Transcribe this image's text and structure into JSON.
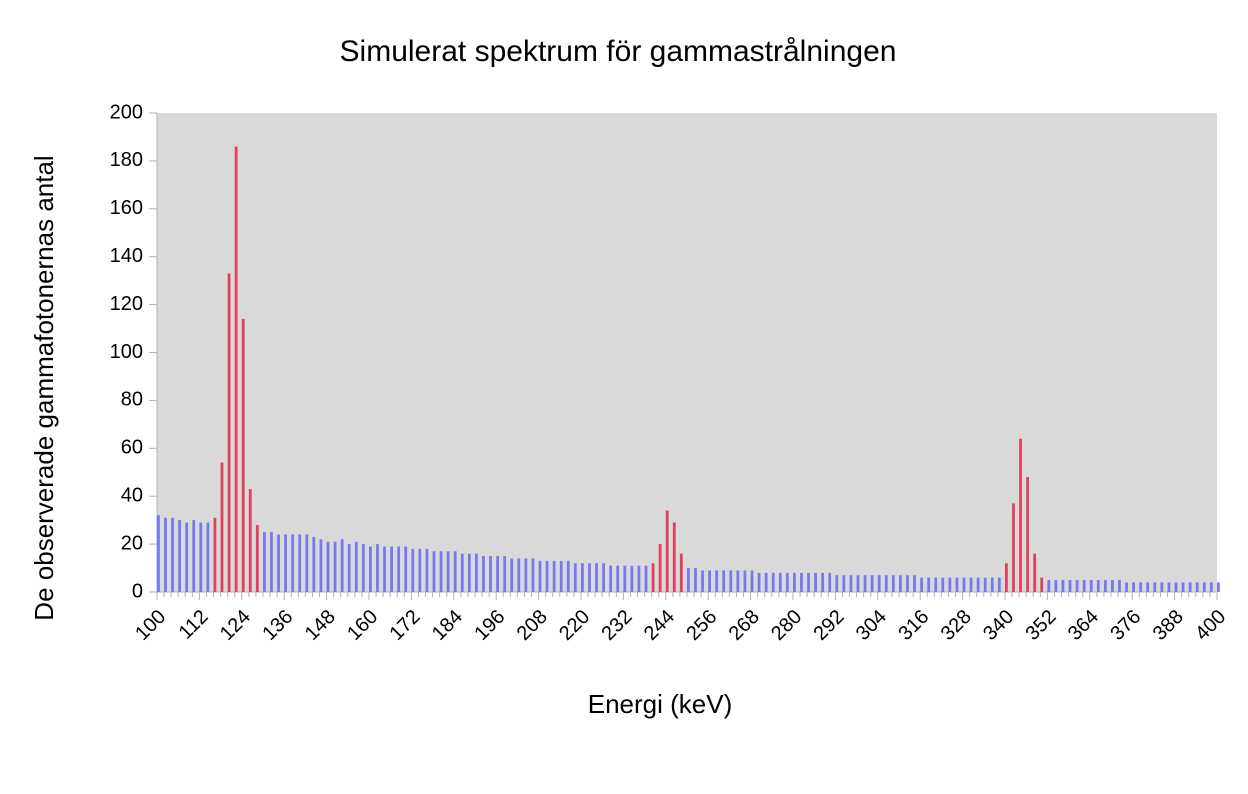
{
  "chart_data": {
    "type": "bar",
    "title": "Simulerat spektrum för gammastrålningen",
    "x_label": "Energi (keV)",
    "y_label": "De observerade gammafotonernas antal",
    "categories": [
      "100",
      null,
      null,
      null,
      null,
      null,
      "112",
      null,
      null,
      null,
      null,
      null,
      "124",
      null,
      null,
      null,
      null,
      null,
      "136",
      null,
      null,
      null,
      null,
      null,
      "148",
      null,
      null,
      null,
      null,
      null,
      "160",
      null,
      null,
      null,
      null,
      null,
      "172",
      null,
      null,
      null,
      null,
      null,
      "184",
      null,
      null,
      null,
      null,
      null,
      "196",
      null,
      null,
      null,
      null,
      null,
      "208",
      null,
      null,
      null,
      null,
      null,
      "220",
      null,
      null,
      null,
      null,
      null,
      "232",
      null,
      null,
      null,
      null,
      null,
      "244",
      null,
      null,
      null,
      null,
      null,
      "256",
      null,
      null,
      null,
      null,
      null,
      "268",
      null,
      null,
      null,
      null,
      null,
      "280",
      null,
      null,
      null,
      null,
      null,
      "292",
      null,
      null,
      null,
      null,
      null,
      "304",
      null,
      null,
      null,
      null,
      null,
      "316",
      null,
      null,
      null,
      null,
      null,
      "328",
      null,
      null,
      null,
      null,
      null,
      "340",
      null,
      null,
      null,
      null,
      null,
      "352",
      null,
      null,
      null,
      null,
      null,
      "364",
      null,
      null,
      null,
      null,
      null,
      "376",
      null,
      null,
      null,
      null,
      null,
      "388",
      null,
      null,
      null,
      null,
      null,
      "400"
    ],
    "series": [
      {
        "color": "#7878f0",
        "values": [
          32,
          31,
          31,
          30,
          29,
          30,
          29,
          29,
          null,
          null,
          null,
          null,
          null,
          null,
          null,
          25,
          25,
          24,
          24,
          24,
          24,
          24,
          23,
          22,
          21,
          21,
          22,
          20,
          21,
          20,
          19,
          20,
          19,
          19,
          19,
          19,
          18,
          18,
          18,
          17,
          17,
          17,
          17,
          16,
          16,
          16,
          15,
          15,
          15,
          15,
          14,
          14,
          14,
          14,
          13,
          13,
          13,
          13,
          13,
          12,
          12,
          12,
          12,
          12,
          11,
          11,
          11,
          11,
          11,
          11,
          null,
          null,
          null,
          null,
          null,
          10,
          10,
          9,
          9,
          9,
          9,
          9,
          9,
          9,
          9,
          8,
          8,
          8,
          8,
          8,
          8,
          8,
          8,
          8,
          8,
          8,
          7,
          7,
          7,
          7,
          7,
          7,
          7,
          7,
          7,
          7,
          7,
          7,
          6,
          6,
          6,
          6,
          6,
          6,
          6,
          6,
          6,
          6,
          6,
          6,
          null,
          null,
          null,
          null,
          null,
          null,
          5,
          5,
          5,
          5,
          5,
          5,
          5,
          5,
          5,
          5,
          5,
          4,
          4,
          4,
          4,
          4,
          4,
          4,
          4,
          4,
          4,
          4,
          4,
          4,
          4
        ]
      },
      {
        "color": "#e0405a",
        "values": [
          null,
          null,
          null,
          null,
          null,
          null,
          null,
          null,
          31,
          54,
          133,
          186,
          114,
          43,
          28,
          null,
          null,
          null,
          null,
          null,
          null,
          null,
          null,
          null,
          null,
          null,
          null,
          null,
          null,
          null,
          null,
          null,
          null,
          null,
          null,
          null,
          null,
          null,
          null,
          null,
          null,
          null,
          null,
          null,
          null,
          null,
          null,
          null,
          null,
          null,
          null,
          null,
          null,
          null,
          null,
          null,
          null,
          null,
          null,
          null,
          null,
          null,
          null,
          null,
          null,
          null,
          null,
          null,
          null,
          null,
          12,
          20,
          34,
          29,
          16,
          null,
          null,
          null,
          null,
          null,
          null,
          null,
          null,
          null,
          null,
          null,
          null,
          null,
          null,
          null,
          null,
          null,
          null,
          null,
          null,
          null,
          null,
          null,
          null,
          null,
          null,
          null,
          null,
          null,
          null,
          null,
          null,
          null,
          null,
          null,
          null,
          null,
          null,
          null,
          null,
          null,
          null,
          null,
          null,
          null,
          12,
          37,
          64,
          48,
          16,
          6,
          null,
          null,
          null,
          null,
          null,
          null,
          null,
          null,
          null,
          null,
          null,
          null,
          null,
          null,
          null,
          null,
          null,
          null,
          null,
          null,
          null,
          null,
          null,
          null,
          null
        ]
      }
    ],
    "ylim": [
      0,
      200
    ],
    "yticks": [
      0,
      20,
      40,
      60,
      80,
      100,
      120,
      140,
      160,
      180,
      200
    ],
    "grid": false
  }
}
